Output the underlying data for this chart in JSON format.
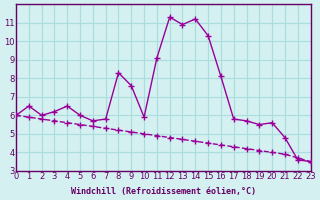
{
  "line1_x": [
    0,
    1,
    2,
    3,
    4,
    5,
    6,
    7,
    8,
    9,
    10,
    11,
    12,
    13,
    14,
    15,
    16,
    17,
    18,
    19,
    20,
    21,
    22,
    23
  ],
  "line1_y": [
    6.0,
    6.5,
    6.0,
    6.2,
    6.5,
    6.0,
    5.7,
    5.8,
    8.3,
    7.6,
    5.9,
    9.1,
    11.3,
    10.9,
    11.2,
    10.3,
    8.1,
    5.8,
    5.7,
    5.5,
    5.6,
    4.8,
    3.6,
    3.5
  ],
  "line2_x": [
    0,
    1,
    2,
    3,
    4,
    5,
    6,
    7,
    8,
    9,
    10,
    11,
    12,
    13,
    14,
    15,
    16,
    17,
    18,
    19,
    20,
    21,
    22,
    23
  ],
  "line2_y": [
    6.0,
    5.9,
    5.8,
    5.7,
    5.6,
    5.5,
    5.4,
    5.3,
    5.2,
    5.1,
    5.0,
    4.9,
    4.8,
    4.7,
    4.6,
    4.5,
    4.4,
    4.3,
    4.2,
    4.1,
    4.0,
    3.9,
    3.7,
    3.5
  ],
  "line_color": "#990099",
  "bg_color": "#d4f0f0",
  "grid_color": "#aadddd",
  "axis_color": "#660066",
  "xlabel": "Windchill (Refroidissement éolien,°C)",
  "xlim": [
    0,
    23
  ],
  "ylim": [
    3,
    12
  ],
  "yticks": [
    3,
    4,
    5,
    6,
    7,
    8,
    9,
    10,
    11
  ],
  "xticks": [
    0,
    1,
    2,
    3,
    4,
    5,
    6,
    7,
    8,
    9,
    10,
    11,
    12,
    13,
    14,
    15,
    16,
    17,
    18,
    19,
    20,
    21,
    22,
    23
  ],
  "marker": "+"
}
